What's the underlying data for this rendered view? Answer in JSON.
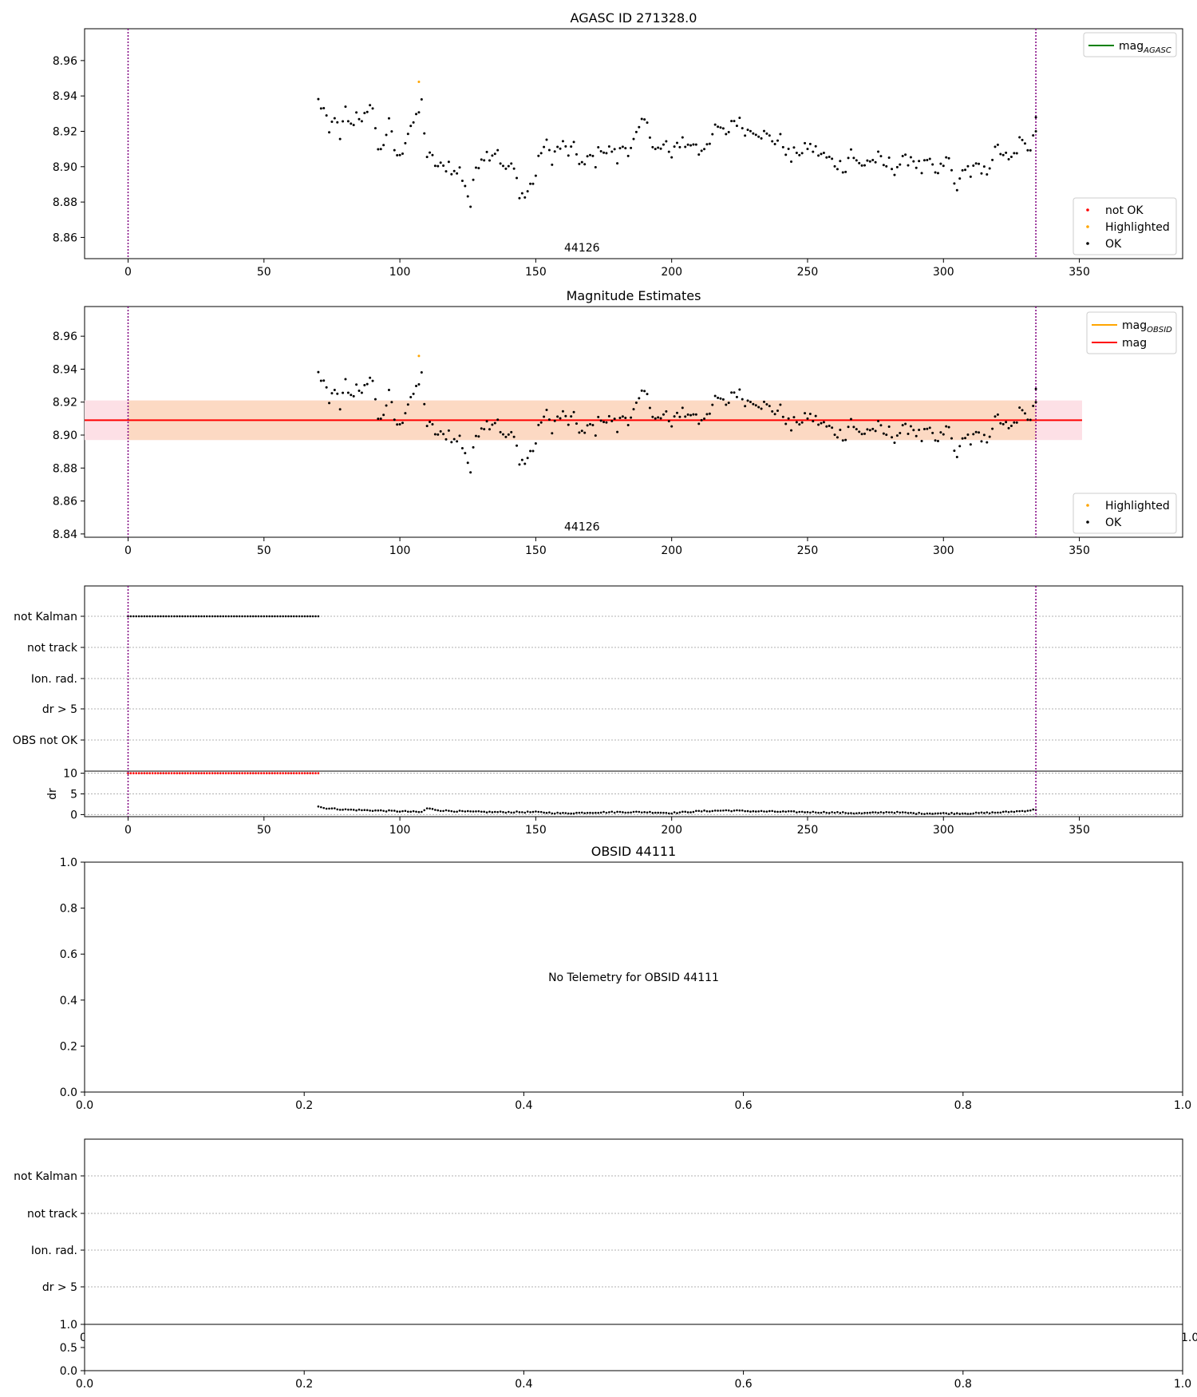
{
  "chart_data": [
    {
      "type": "scatter",
      "title": "AGASC ID 271328.0",
      "xlim": [
        -16,
        388
      ],
      "ylim": [
        8.848,
        8.978
      ],
      "xticks": [
        0,
        50,
        100,
        150,
        200,
        250,
        300,
        350
      ],
      "yticks": [
        8.86,
        8.88,
        8.9,
        8.92,
        8.94,
        8.96
      ],
      "ytick_labels": [
        "8.86",
        "8.88",
        "8.90",
        "8.92",
        "8.94",
        "8.96"
      ],
      "vlines": [
        0,
        334
      ],
      "annotation": {
        "text": "44126",
        "x": 167,
        "y": 8.853
      },
      "legend_lines": [
        {
          "name": "mag",
          "sub": "AGASC",
          "color": "#008000"
        }
      ],
      "legend_markers": [
        {
          "name": "not OK",
          "color": "#ff0000"
        },
        {
          "name": "Highlighted",
          "color": "#ffa500"
        },
        {
          "name": "OK",
          "color": "#000000"
        }
      ],
      "highlighted": [
        [
          107,
          8.948
        ]
      ],
      "ok_anchors": [
        [
          70,
          8.937
        ],
        [
          72,
          8.932
        ],
        [
          74,
          8.918
        ],
        [
          76,
          8.93
        ],
        [
          78,
          8.914
        ],
        [
          80,
          8.932
        ],
        [
          82,
          8.922
        ],
        [
          84,
          8.93
        ],
        [
          86,
          8.928
        ],
        [
          88,
          8.928
        ],
        [
          90,
          8.936
        ],
        [
          92,
          8.908
        ],
        [
          94,
          8.914
        ],
        [
          96,
          8.924
        ],
        [
          98,
          8.91
        ],
        [
          100,
          8.904
        ],
        [
          102,
          8.916
        ],
        [
          104,
          8.924
        ],
        [
          106,
          8.926
        ],
        [
          108,
          8.936
        ],
        [
          110,
          8.906
        ],
        [
          112,
          8.904
        ],
        [
          114,
          8.9
        ],
        [
          116,
          8.899
        ],
        [
          118,
          8.902
        ],
        [
          120,
          8.896
        ],
        [
          122,
          8.898
        ],
        [
          124,
          8.89
        ],
        [
          126,
          8.878
        ],
        [
          128,
          8.9
        ],
        [
          130,
          8.906
        ],
        [
          132,
          8.907
        ],
        [
          134,
          8.908
        ],
        [
          136,
          8.91
        ],
        [
          138,
          8.898
        ],
        [
          140,
          8.9
        ],
        [
          142,
          8.898
        ],
        [
          144,
          8.886
        ],
        [
          146,
          8.883
        ],
        [
          148,
          8.889
        ],
        [
          150,
          8.895
        ],
        [
          152,
          8.91
        ],
        [
          154,
          8.912
        ],
        [
          156,
          8.905
        ],
        [
          158,
          8.91
        ],
        [
          160,
          8.912
        ],
        [
          162,
          8.908
        ],
        [
          164,
          8.91
        ],
        [
          166,
          8.904
        ],
        [
          168,
          8.9
        ],
        [
          170,
          8.906
        ],
        [
          172,
          8.903
        ],
        [
          174,
          8.912
        ],
        [
          176,
          8.908
        ],
        [
          178,
          8.91
        ],
        [
          180,
          8.904
        ],
        [
          182,
          8.912
        ],
        [
          184,
          8.91
        ],
        [
          186,
          8.914
        ],
        [
          188,
          8.92
        ],
        [
          190,
          8.926
        ],
        [
          192,
          8.918
        ],
        [
          194,
          8.912
        ],
        [
          196,
          8.909
        ],
        [
          198,
          8.913
        ],
        [
          200,
          8.904
        ],
        [
          202,
          8.912
        ],
        [
          204,
          8.916
        ],
        [
          206,
          8.911
        ],
        [
          208,
          8.914
        ],
        [
          210,
          8.908
        ],
        [
          212,
          8.912
        ],
        [
          214,
          8.916
        ],
        [
          216,
          8.92
        ],
        [
          218,
          8.922
        ],
        [
          220,
          8.916
        ],
        [
          222,
          8.926
        ],
        [
          224,
          8.926
        ],
        [
          226,
          8.923
        ],
        [
          228,
          8.92
        ],
        [
          230,
          8.922
        ],
        [
          232,
          8.92
        ],
        [
          234,
          8.918
        ],
        [
          236,
          8.916
        ],
        [
          238,
          8.915
        ],
        [
          240,
          8.915
        ],
        [
          242,
          8.91
        ],
        [
          244,
          8.904
        ],
        [
          246,
          8.91
        ],
        [
          248,
          8.907
        ],
        [
          250,
          8.912
        ],
        [
          252,
          8.91
        ],
        [
          254,
          8.908
        ],
        [
          256,
          8.906
        ],
        [
          258,
          8.904
        ],
        [
          260,
          8.902
        ],
        [
          262,
          8.901
        ],
        [
          264,
          8.9
        ],
        [
          266,
          8.91
        ],
        [
          268,
          8.902
        ],
        [
          270,
          8.9
        ],
        [
          272,
          8.904
        ],
        [
          274,
          8.903
        ],
        [
          276,
          8.905
        ],
        [
          278,
          8.9
        ],
        [
          280,
          8.902
        ],
        [
          282,
          8.899
        ],
        [
          284,
          8.902
        ],
        [
          286,
          8.903
        ],
        [
          288,
          8.906
        ],
        [
          290,
          8.902
        ],
        [
          292,
          8.898
        ],
        [
          294,
          8.902
        ],
        [
          296,
          8.899
        ],
        [
          298,
          8.895
        ],
        [
          300,
          8.902
        ],
        [
          302,
          8.904
        ],
        [
          304,
          8.89
        ],
        [
          306,
          8.89
        ],
        [
          308,
          8.902
        ],
        [
          310,
          8.896
        ],
        [
          312,
          8.9
        ],
        [
          314,
          8.896
        ],
        [
          316,
          8.898
        ],
        [
          318,
          8.906
        ],
        [
          320,
          8.91
        ],
        [
          322,
          8.908
        ],
        [
          324,
          8.902
        ],
        [
          326,
          8.906
        ],
        [
          328,
          8.914
        ],
        [
          330,
          8.911
        ],
        [
          332,
          8.912
        ],
        [
          334,
          8.93
        ]
      ]
    },
    {
      "type": "scatter",
      "title": "Magnitude Estimates",
      "xlim": [
        -16,
        388
      ],
      "ylim": [
        8.838,
        8.978
      ],
      "xticks": [
        0,
        50,
        100,
        150,
        200,
        250,
        300,
        350
      ],
      "yticks": [
        8.84,
        8.86,
        8.88,
        8.9,
        8.92,
        8.94,
        8.96
      ],
      "ytick_labels": [
        "8.84",
        "8.86",
        "8.88",
        "8.90",
        "8.92",
        "8.94",
        "8.96"
      ],
      "vlines": [
        0,
        334
      ],
      "annotation": {
        "text": "44126",
        "x": 167,
        "y": 8.843
      },
      "mag_line": 8.909,
      "band_outer": {
        "x": [
          -16,
          351
        ],
        "y": [
          8.897,
          8.921
        ],
        "color": "#fde0e6"
      },
      "band_inner": {
        "x": [
          0,
          334
        ],
        "y": [
          8.897,
          8.921
        ],
        "color": "#fcd9c3"
      },
      "legend_lines": [
        {
          "name": "mag",
          "sub": "OBSID",
          "color": "#ffa500"
        },
        {
          "name": "mag",
          "sub": "",
          "color": "#ff0000"
        }
      ],
      "legend_markers": [
        {
          "name": "Highlighted",
          "color": "#ffa500"
        },
        {
          "name": "OK",
          "color": "#000000"
        }
      ],
      "highlighted": [
        [
          107,
          8.948
        ]
      ]
    },
    {
      "type": "scatter",
      "title": "",
      "xlim": [
        -16,
        388
      ],
      "xticks": [
        0,
        50,
        100,
        150,
        200,
        250,
        300,
        350
      ],
      "categories": [
        "not Kalman",
        "not track",
        "Ion. rad.",
        "dr > 5",
        "OBS not OK"
      ],
      "flag_range": [
        0,
        70
      ],
      "flag_category": "not Kalman",
      "vlines": [
        0,
        334
      ]
    },
    {
      "type": "scatter",
      "title": "",
      "ylabel": "dr",
      "xlim": [
        -16,
        388
      ],
      "ylim": [
        -0.5,
        10.5
      ],
      "yticks": [
        0,
        5,
        10
      ],
      "ytick_labels": [
        "0",
        "5",
        "10"
      ],
      "clipped_range": [
        0,
        70
      ],
      "clipped_value": 10,
      "vlines": [
        0,
        334
      ],
      "dr_anchors": [
        [
          70,
          2.0
        ],
        [
          72,
          1.6
        ],
        [
          80,
          1.2
        ],
        [
          90,
          1.0
        ],
        [
          100,
          0.8
        ],
        [
          108,
          0.6
        ],
        [
          110,
          1.5
        ],
        [
          115,
          1.0
        ],
        [
          125,
          0.7
        ],
        [
          135,
          0.6
        ],
        [
          150,
          0.6
        ],
        [
          160,
          0.3
        ],
        [
          170,
          0.5
        ],
        [
          180,
          0.6
        ],
        [
          190,
          0.6
        ],
        [
          200,
          0.4
        ],
        [
          210,
          0.8
        ],
        [
          220,
          1.0
        ],
        [
          230,
          0.8
        ],
        [
          240,
          0.7
        ],
        [
          250,
          0.6
        ],
        [
          260,
          0.5
        ],
        [
          270,
          0.3
        ],
        [
          280,
          0.6
        ],
        [
          290,
          0.3
        ],
        [
          300,
          0.3
        ],
        [
          310,
          0.3
        ],
        [
          320,
          0.5
        ],
        [
          330,
          0.9
        ],
        [
          334,
          1.2
        ]
      ]
    },
    {
      "type": "scatter",
      "title": "OBSID 44111",
      "xlim": [
        0,
        1
      ],
      "ylim": [
        0,
        1
      ],
      "xticks": [
        0,
        0.2,
        0.4,
        0.6,
        0.8,
        1
      ],
      "xtick_labels": [
        "0.0",
        "0.2",
        "0.4",
        "0.6",
        "0.8",
        "1.0"
      ],
      "yticks": [
        0,
        0.2,
        0.4,
        0.6,
        0.8,
        1
      ],
      "ytick_labels": [
        "0.0",
        "0.2",
        "0.4",
        "0.6",
        "0.8",
        "1.0"
      ],
      "annotation": {
        "text": "No Telemetry for OBSID 44111",
        "x": 0.5,
        "y": 0.5
      }
    },
    {
      "type": "scatter",
      "title": "",
      "categories": [
        "not Kalman",
        "not track",
        "Ion. rad.",
        "dr > 5"
      ],
      "overlap_tick_labels": [
        "0.0",
        "1.0"
      ]
    },
    {
      "type": "scatter",
      "title": "",
      "xlim": [
        0,
        1
      ],
      "ylim": [
        0,
        1
      ],
      "xticks": [
        0,
        0.2,
        0.4,
        0.6,
        0.8,
        1
      ],
      "xtick_labels": [
        "0.0",
        "0.2",
        "0.4",
        "0.6",
        "0.8",
        "1.0"
      ],
      "yticks": [
        0,
        0.5,
        1
      ],
      "ytick_labels": [
        "0.0",
        "0.5",
        "1.0"
      ]
    }
  ]
}
